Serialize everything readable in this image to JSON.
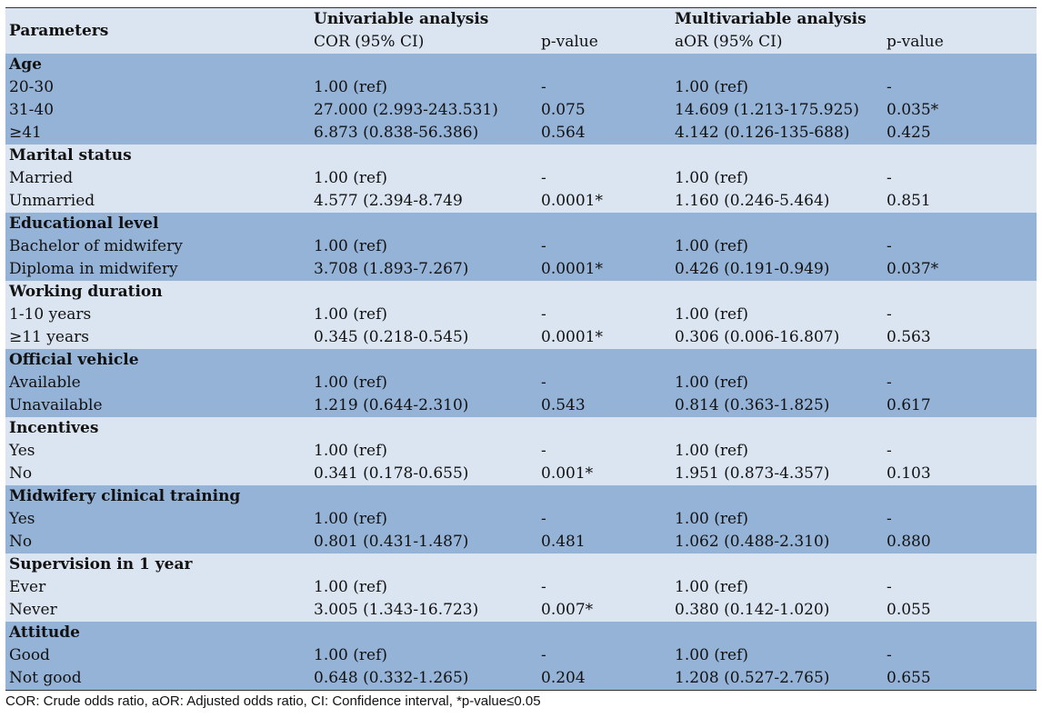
{
  "header": {
    "parameters": "Parameters",
    "univariable": "Univariable analysis",
    "multivariable": "Multivariable analysis",
    "cor": "COR (95% CI)",
    "pvalue1": "p-value",
    "aor": "aOR (95% CI)",
    "pvalue2": "p-value"
  },
  "groups": [
    {
      "title": "Age",
      "rows": [
        [
          "20-30",
          "1.00 (ref)",
          "-",
          "1.00 (ref)",
          "-"
        ],
        [
          "31-40",
          "27.000 (2.993-243.531)",
          "0.075",
          "14.609 (1.213-175.925)",
          "0.035*"
        ],
        [
          "≥41",
          "6.873 (0.838-56.386)",
          "0.564",
          "4.142 (0.126-135-688)",
          "0.425"
        ]
      ]
    },
    {
      "title": "Marital status",
      "rows": [
        [
          "Married",
          "1.00 (ref)",
          "-",
          "1.00 (ref)",
          "-"
        ],
        [
          "Unmarried",
          "4.577 (2.394-8.749",
          "0.0001*",
          "1.160 (0.246-5.464)",
          "0.851"
        ]
      ]
    },
    {
      "title": "Educational level",
      "rows": [
        [
          "Bachelor of midwifery",
          "1.00 (ref)",
          "-",
          "1.00 (ref)",
          "-"
        ],
        [
          "Diploma in midwifery",
          "3.708 (1.893-7.267)",
          "0.0001*",
          "0.426 (0.191-0.949)",
          "0.037*"
        ]
      ]
    },
    {
      "title": "Working duration",
      "rows": [
        [
          "1-10 years",
          "1.00 (ref)",
          "-",
          "1.00 (ref)",
          "-"
        ],
        [
          "≥11 years",
          "0.345 (0.218-0.545)",
          "0.0001*",
          "0.306 (0.006-16.807)",
          "0.563"
        ]
      ]
    },
    {
      "title": "Official vehicle",
      "rows": [
        [
          "Available",
          "1.00 (ref)",
          "-",
          "1.00 (ref)",
          "-"
        ],
        [
          "Unavailable",
          "1.219 (0.644-2.310)",
          "0.543",
          "0.814 (0.363-1.825)",
          "0.617"
        ]
      ]
    },
    {
      "title": "Incentives",
      "rows": [
        [
          "Yes",
          "1.00 (ref)",
          "-",
          "1.00 (ref)",
          "-"
        ],
        [
          "No",
          "0.341 (0.178-0.655)",
          "0.001*",
          "1.951 (0.873-4.357)",
          "0.103"
        ]
      ]
    },
    {
      "title": "Midwifery clinical training",
      "rows": [
        [
          "Yes",
          "1.00 (ref)",
          "-",
          "1.00 (ref)",
          "-"
        ],
        [
          "No",
          "0.801 (0.431-1.487)",
          "0.481",
          "1.062 (0.488-2.310)",
          "0.880"
        ]
      ]
    },
    {
      "title": "Supervision in 1 year",
      "rows": [
        [
          "Ever",
          "1.00 (ref)",
          "-",
          "1.00 (ref)",
          "-"
        ],
        [
          "Never",
          "3.005 (1.343-16.723)",
          "0.007*",
          "0.380 (0.142-1.020)",
          "0.055"
        ]
      ]
    },
    {
      "title": "Attitude",
      "rows": [
        [
          "Good",
          "1.00 (ref)",
          "-",
          "1.00 (ref)",
          "-"
        ],
        [
          "Not good",
          "0.648 (0.332-1.265)",
          "0.204",
          "1.208 (0.527-2.765)",
          "0.655"
        ]
      ]
    }
  ],
  "footnote": "COR: Crude odds ratio, aOR: Adjusted odds ratio, CI: Confidence interval, *p-value≤0.05",
  "colors": {
    "light_band": "#dbe5f1",
    "dark_band": "#95b3d7"
  }
}
